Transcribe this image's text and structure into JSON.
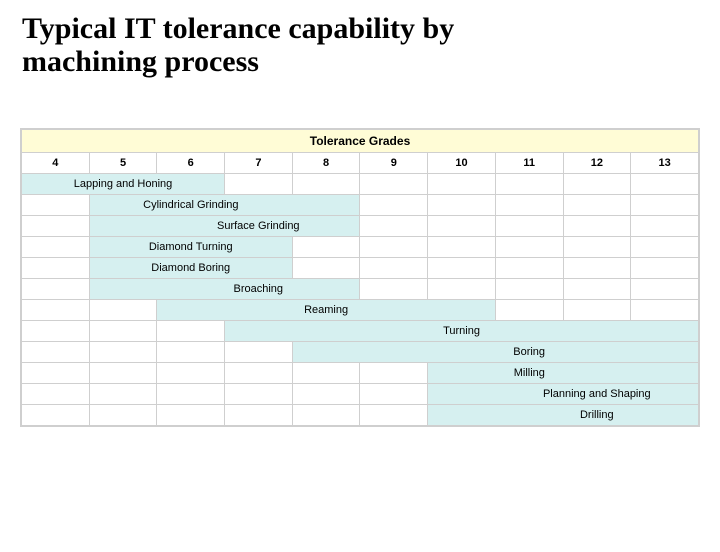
{
  "title_line1": "Typical IT tolerance capability by",
  "title_line2": "machining process",
  "table": {
    "header_title": "Tolerance Grades",
    "grades": [
      "4",
      "5",
      "6",
      "7",
      "8",
      "9",
      "10",
      "11",
      "12",
      "13"
    ],
    "header_bg": "#fffcd6",
    "filled_bg": "#d6f0f0",
    "border_color": "#cfcfcf",
    "font_size_header": 12,
    "font_size_cells": 11,
    "rows": [
      {
        "label": "Lapping and Honing",
        "start": 0,
        "span": 3,
        "label_col": 1
      },
      {
        "label": "Cylindrical Grinding",
        "start": 1,
        "span": 4,
        "label_col": 2
      },
      {
        "label": "Surface Grinding",
        "start": 1,
        "span": 4,
        "label_col": 3
      },
      {
        "label": "Diamond Turning",
        "start": 1,
        "span": 3,
        "label_col": 2
      },
      {
        "label": "Diamond Boring",
        "start": 1,
        "span": 3,
        "label_col": 2
      },
      {
        "label": "Broaching",
        "start": 1,
        "span": 4,
        "label_col": 3
      },
      {
        "label": "Reaming",
        "start": 2,
        "span": 5,
        "label_col": 4
      },
      {
        "label": "Turning",
        "start": 3,
        "span": 7,
        "label_col": 6
      },
      {
        "label": "Boring",
        "start": 4,
        "span": 6,
        "label_col": 7
      },
      {
        "label": "Milling",
        "start": 6,
        "span": 4,
        "label_col": 7
      },
      {
        "label": "Planning and Shaping",
        "start": 6,
        "span": 4,
        "label_col": 8
      },
      {
        "label": "Drilling",
        "start": 6,
        "span": 4,
        "label_col": 8
      }
    ]
  }
}
